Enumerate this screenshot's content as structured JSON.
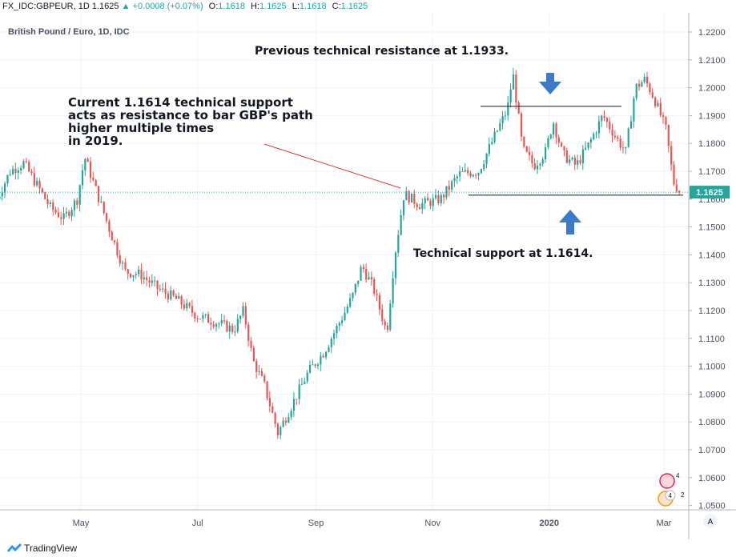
{
  "header": {
    "symbol": "FX_IDC:GBPEUR, 1D",
    "last": "1.1625",
    "change": "▲ +0.0008 (+0.07%)",
    "o_label": "O:",
    "o": "1.1618",
    "h_label": "H:",
    "h": "1.1625",
    "l_label": "L:",
    "l": "1.1618",
    "c_label": "C:",
    "c": "1.1625"
  },
  "watermark": "British Pound / Euro, 1D, IDC",
  "footer": {
    "brand": "TradingView"
  },
  "colors": {
    "up": "#26a69a",
    "down": "#ef5350",
    "arrow": "#3b7ac9",
    "support_line": "#26a69a",
    "trendline": "#e53935"
  },
  "chart_data": {
    "type": "candlestick",
    "title": "British Pound / Euro, 1D, IDC",
    "xlabel": "",
    "ylabel": "",
    "x_ticks": [
      "May",
      "Jul",
      "Sep",
      "Nov",
      "2020",
      "Mar"
    ],
    "y_ticks": [
      "1.2200",
      "1.2100",
      "1.2000",
      "1.1900",
      "1.1800",
      "1.1700",
      "1.1600",
      "1.1500",
      "1.1400",
      "1.1300",
      "1.1200",
      "1.1100",
      "1.1000",
      "1.0900",
      "1.0800",
      "1.0700",
      "1.0600",
      "1.0500"
    ],
    "ylim": [
      1.0495,
      1.2225
    ],
    "last_price_label": "1.1625",
    "price_anchors": [
      {
        "x": "2019-03-18",
        "y": 1.16
      },
      {
        "x": "2019-03-25",
        "y": 1.17
      },
      {
        "x": "2019-04-01",
        "y": 1.173
      },
      {
        "x": "2019-04-08",
        "y": 1.165
      },
      {
        "x": "2019-04-15",
        "y": 1.157
      },
      {
        "x": "2019-04-22",
        "y": 1.153
      },
      {
        "x": "2019-04-29",
        "y": 1.16
      },
      {
        "x": "2019-05-03",
        "y": 1.175
      },
      {
        "x": "2019-05-10",
        "y": 1.161
      },
      {
        "x": "2019-05-17",
        "y": 1.147
      },
      {
        "x": "2019-05-24",
        "y": 1.134
      },
      {
        "x": "2019-06-01",
        "y": 1.133
      },
      {
        "x": "2019-06-10",
        "y": 1.128
      },
      {
        "x": "2019-06-20",
        "y": 1.124
      },
      {
        "x": "2019-07-01",
        "y": 1.118
      },
      {
        "x": "2019-07-10",
        "y": 1.116
      },
      {
        "x": "2019-07-20",
        "y": 1.113
      },
      {
        "x": "2019-07-25",
        "y": 1.12
      },
      {
        "x": "2019-07-30",
        "y": 1.102
      },
      {
        "x": "2019-08-05",
        "y": 1.093
      },
      {
        "x": "2019-08-12",
        "y": 1.076
      },
      {
        "x": "2019-08-20",
        "y": 1.087
      },
      {
        "x": "2019-08-28",
        "y": 1.098
      },
      {
        "x": "2019-09-05",
        "y": 1.105
      },
      {
        "x": "2019-09-15",
        "y": 1.118
      },
      {
        "x": "2019-09-20",
        "y": 1.125
      },
      {
        "x": "2019-09-25",
        "y": 1.136
      },
      {
        "x": "2019-10-01",
        "y": 1.128
      },
      {
        "x": "2019-10-08",
        "y": 1.112
      },
      {
        "x": "2019-10-12",
        "y": 1.139
      },
      {
        "x": "2019-10-17",
        "y": 1.162
      },
      {
        "x": "2019-10-25",
        "y": 1.158
      },
      {
        "x": "2019-11-05",
        "y": 1.16
      },
      {
        "x": "2019-11-15",
        "y": 1.169
      },
      {
        "x": "2019-11-25",
        "y": 1.17
      },
      {
        "x": "2019-12-05",
        "y": 1.185
      },
      {
        "x": "2019-12-10",
        "y": 1.192
      },
      {
        "x": "2019-12-13",
        "y": 1.205
      },
      {
        "x": "2019-12-18",
        "y": 1.178
      },
      {
        "x": "2019-12-24",
        "y": 1.172
      },
      {
        "x": "2019-12-30",
        "y": 1.177
      },
      {
        "x": "2020-01-03",
        "y": 1.188
      },
      {
        "x": "2020-01-08",
        "y": 1.176
      },
      {
        "x": "2020-01-15",
        "y": 1.172
      },
      {
        "x": "2020-01-22",
        "y": 1.18
      },
      {
        "x": "2020-01-29",
        "y": 1.19
      },
      {
        "x": "2020-02-05",
        "y": 1.182
      },
      {
        "x": "2020-02-10",
        "y": 1.177
      },
      {
        "x": "2020-02-15",
        "y": 1.2
      },
      {
        "x": "2020-02-20",
        "y": 1.203
      },
      {
        "x": "2020-02-25",
        "y": 1.196
      },
      {
        "x": "2020-03-02",
        "y": 1.185
      },
      {
        "x": "2020-03-06",
        "y": 1.166
      },
      {
        "x": "2020-03-10",
        "y": 1.162
      }
    ],
    "horizontal_lines": [
      {
        "name": "resistance",
        "value": 1.1933
      },
      {
        "name": "support",
        "value": 1.1614
      }
    ]
  },
  "annotations": {
    "resistance_text": "Previous technical resistance at 1.1933.",
    "support_text": "Technical support at 1.1614.",
    "current_lines": [
      "Current 1.1614 technical support",
      "acts as resistance to bar GBP's path",
      "higher multiple times",
      "in 2019."
    ]
  },
  "scale_button": "A",
  "event_badges": [
    "4",
    "4",
    "2"
  ]
}
